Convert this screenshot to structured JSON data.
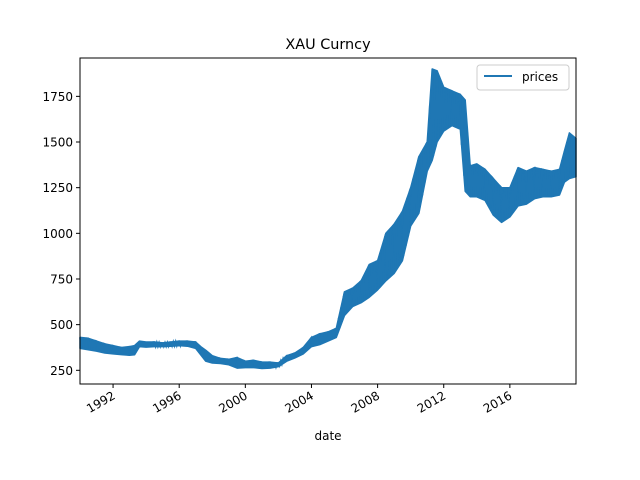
{
  "chart_data": {
    "type": "line",
    "title": "XAU Curncy",
    "xlabel": "date",
    "ylabel": "",
    "xlim": [
      1990.0,
      2020.0
    ],
    "ylim": [
      175,
      1960
    ],
    "x_ticks": [
      {
        "value": 1992,
        "label": "1992"
      },
      {
        "value": 1996,
        "label": "1996"
      },
      {
        "value": 2000,
        "label": "2000"
      },
      {
        "value": 2004,
        "label": "2004"
      },
      {
        "value": 2008,
        "label": "2008"
      },
      {
        "value": 2012,
        "label": "2012"
      },
      {
        "value": 2016,
        "label": "2016"
      }
    ],
    "y_ticks": [
      {
        "value": 250,
        "label": "250"
      },
      {
        "value": 500,
        "label": "500"
      },
      {
        "value": 750,
        "label": "750"
      },
      {
        "value": 1000,
        "label": "1000"
      },
      {
        "value": 1250,
        "label": "1250"
      },
      {
        "value": 1500,
        "label": "1500"
      },
      {
        "value": 1750,
        "label": "1750"
      }
    ],
    "legend": {
      "position": "top-right",
      "entries": [
        "prices"
      ]
    },
    "grid": false,
    "series": [
      {
        "name": "prices",
        "color": "#1f77b4",
        "x": [
          1990.0,
          1990.5,
          1991.0,
          1991.5,
          1992.0,
          1992.5,
          1993.0,
          1993.3,
          1993.6,
          1994.0,
          1994.5,
          1995.0,
          1995.5,
          1996.0,
          1996.5,
          1997.0,
          1997.3,
          1997.6,
          1998.0,
          1998.5,
          1999.0,
          1999.5,
          2000.0,
          2000.5,
          2001.0,
          2001.5,
          2002.0,
          2002.5,
          2003.0,
          2003.5,
          2004.0,
          2004.5,
          2005.0,
          2005.5,
          2006.0,
          2006.5,
          2007.0,
          2007.5,
          2008.0,
          2008.5,
          2009.0,
          2009.5,
          2010.0,
          2010.5,
          2011.0,
          2011.3,
          2011.6,
          2012.0,
          2012.5,
          2013.0,
          2013.3,
          2013.6,
          2014.0,
          2014.5,
          2015.0,
          2015.5,
          2016.0,
          2016.5,
          2017.0,
          2017.5,
          2018.0,
          2018.5,
          2019.0,
          2019.3,
          2019.6,
          2020.0
        ],
        "low": [
          370,
          362,
          355,
          345,
          340,
          336,
          332,
          335,
          380,
          377,
          380,
          380,
          382,
          385,
          382,
          370,
          335,
          300,
          290,
          287,
          280,
          262,
          265,
          265,
          260,
          262,
          270,
          300,
          318,
          340,
          380,
          390,
          410,
          430,
          550,
          600,
          620,
          650,
          690,
          740,
          780,
          850,
          1040,
          1110,
          1340,
          1400,
          1500,
          1560,
          1590,
          1570,
          1230,
          1200,
          1200,
          1180,
          1100,
          1060,
          1090,
          1150,
          1160,
          1190,
          1200,
          1200,
          1210,
          1280,
          1300,
          1310
        ],
        "high": [
          430,
          425,
          410,
          395,
          385,
          375,
          380,
          385,
          410,
          405,
          405,
          400,
          405,
          410,
          410,
          405,
          380,
          360,
          330,
          315,
          310,
          320,
          300,
          305,
          295,
          295,
          290,
          330,
          345,
          375,
          430,
          450,
          460,
          480,
          680,
          700,
          740,
          830,
          850,
          1000,
          1050,
          1120,
          1250,
          1420,
          1500,
          1900,
          1890,
          1800,
          1780,
          1760,
          1730,
          1370,
          1380,
          1350,
          1300,
          1250,
          1250,
          1360,
          1340,
          1360,
          1350,
          1340,
          1350,
          1450,
          1550,
          1520
        ]
      }
    ]
  }
}
